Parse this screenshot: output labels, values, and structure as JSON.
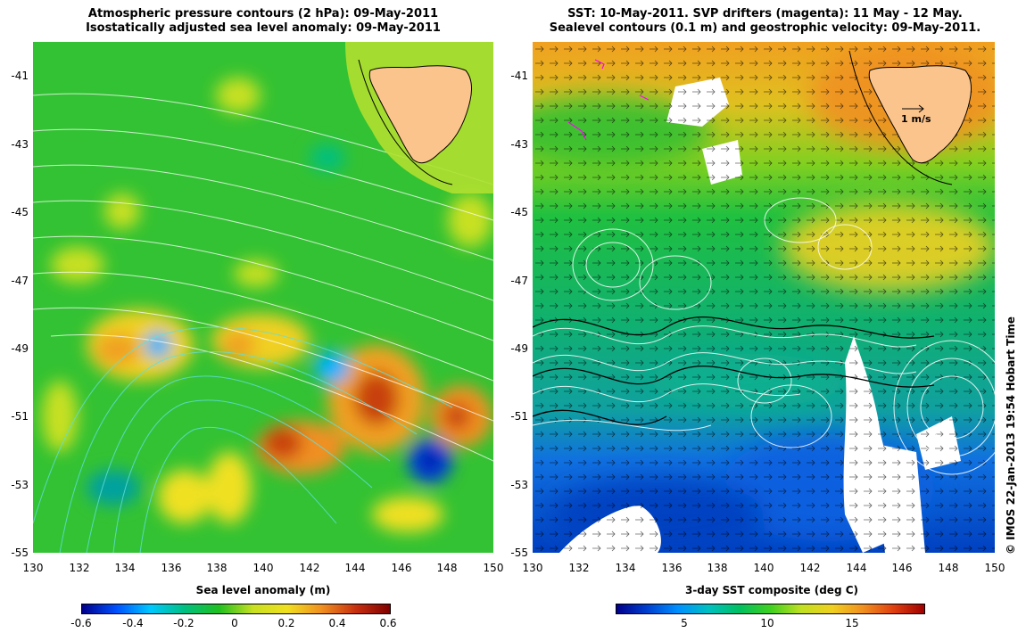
{
  "left_panel": {
    "title_line1": "Atmospheric pressure contours (2 hPa): 09-May-2011",
    "title_line2": "Isostatically adjusted sea level anomaly: 09-May-2011",
    "colorbar": {
      "title": "Sea level anomaly (m)",
      "ticks": [
        "-0.6",
        "-0.4",
        "-0.2",
        "0",
        "0.2",
        "0.4",
        "0.6"
      ],
      "colors": [
        "#00008b",
        "#0050ff",
        "#00c8ff",
        "#00c080",
        "#20c020",
        "#c8e020",
        "#f0e020",
        "#f09020",
        "#c83010",
        "#800000"
      ]
    }
  },
  "right_panel": {
    "title_line1": "SST: 10-May-2011. SVP drifters (magenta): 11 May - 12 May.",
    "title_line2": "Sealevel contours (0.1 m) and geostrophic velocity: 09-May-2011.",
    "scale_label": "1 m/s",
    "colorbar": {
      "title": "3-day SST composite (deg C)",
      "ticks": [
        "5",
        "10",
        "15"
      ],
      "colors": [
        "#00008b",
        "#0040d0",
        "#0090ff",
        "#00c0c0",
        "#00c060",
        "#40d020",
        "#c0e020",
        "#f0d020",
        "#f09020",
        "#e04010",
        "#a00000"
      ]
    }
  },
  "axes": {
    "y_ticks": [
      "-41",
      "-43",
      "-45",
      "-47",
      "-49",
      "-51",
      "-53",
      "-55"
    ],
    "x_ticks": [
      "130",
      "132",
      "134",
      "136",
      "138",
      "140",
      "142",
      "144",
      "146",
      "148",
      "150"
    ]
  },
  "credit": "© IMOS 22-Jan-2013 19:54 Hobart Time"
}
